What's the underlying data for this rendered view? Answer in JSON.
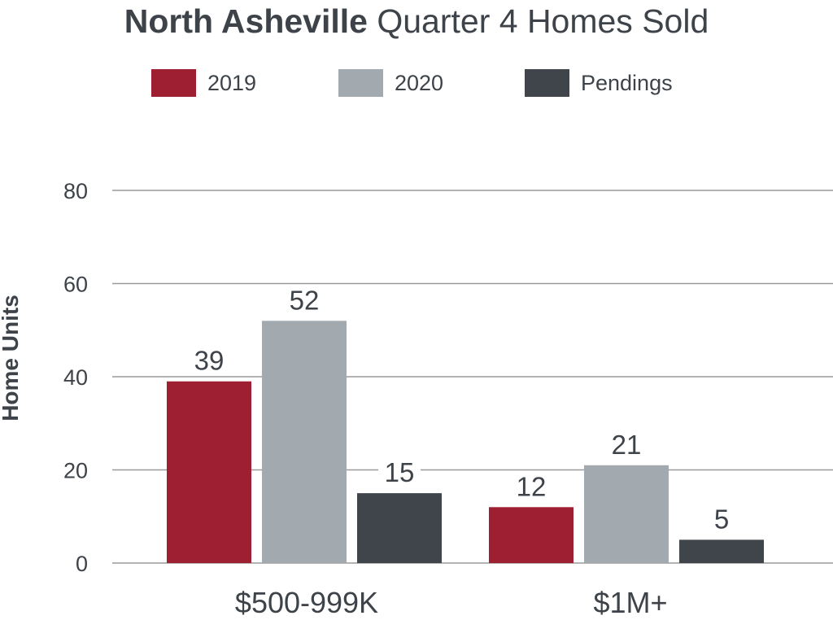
{
  "chart_data": {
    "type": "bar",
    "title_bold": "North Asheville",
    "title_rest": "Quarter 4 Homes Sold",
    "ylabel": "Home Units",
    "xlabel": "",
    "categories": [
      "$500-999K",
      "$1M+"
    ],
    "series": [
      {
        "name": "2019",
        "color": "#9e1f31",
        "values": [
          39,
          12
        ]
      },
      {
        "name": "2020",
        "color": "#a2aab0",
        "values": [
          52,
          21
        ]
      },
      {
        "name": "Pendings",
        "color": "#40454c",
        "values": [
          15,
          5
        ]
      }
    ],
    "ylim": [
      0,
      80
    ],
    "yticks": [
      0,
      20,
      40,
      60,
      80
    ],
    "grid": true,
    "legend_position": "top"
  }
}
